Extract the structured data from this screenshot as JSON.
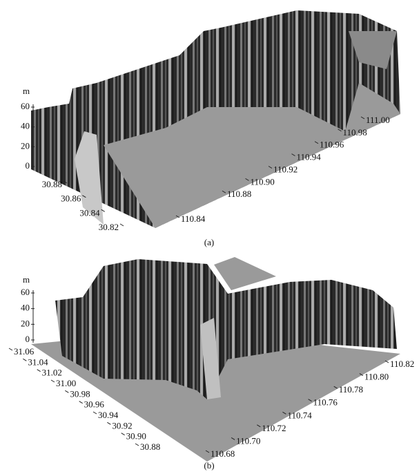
{
  "chart_data": [
    {
      "type": "surface",
      "zlabel": "m",
      "caption": "(a)",
      "zlim": [
        0,
        60
      ],
      "zticks": [
        0,
        20,
        40,
        60
      ],
      "xlim": [
        110.84,
        111
      ],
      "xticks": [
        110.84,
        110.88,
        {
          "value": 110.9,
          "label": "110.90"
        },
        110.92,
        110.94,
        110.96,
        110.98,
        {
          "value": 111,
          "label": "111.00"
        }
      ],
      "ylim": [
        30.82,
        30.88
      ],
      "yticks": [
        30.88,
        30.86,
        30.84,
        30.82
      ]
    },
    {
      "type": "surface",
      "zlabel": "m",
      "caption": "(b)",
      "zlim": [
        0,
        60
      ],
      "zticks": [
        0,
        20,
        40,
        60
      ],
      "xlim": [
        110.68,
        110.82
      ],
      "xticks": [
        110.82,
        {
          "value": 110.8,
          "label": "110.80"
        },
        110.78,
        110.76,
        110.74,
        110.72,
        {
          "value": 110.7,
          "label": "110.70"
        },
        110.68
      ],
      "ylim": [
        30.88,
        31.06
      ],
      "yticks": [
        31.06,
        31.04,
        31.02,
        {
          "value": 31,
          "label": "31.00"
        },
        30.98,
        30.96,
        30.94,
        30.92,
        {
          "value": 30.9,
          "label": "30.90"
        },
        30.88
      ]
    }
  ]
}
